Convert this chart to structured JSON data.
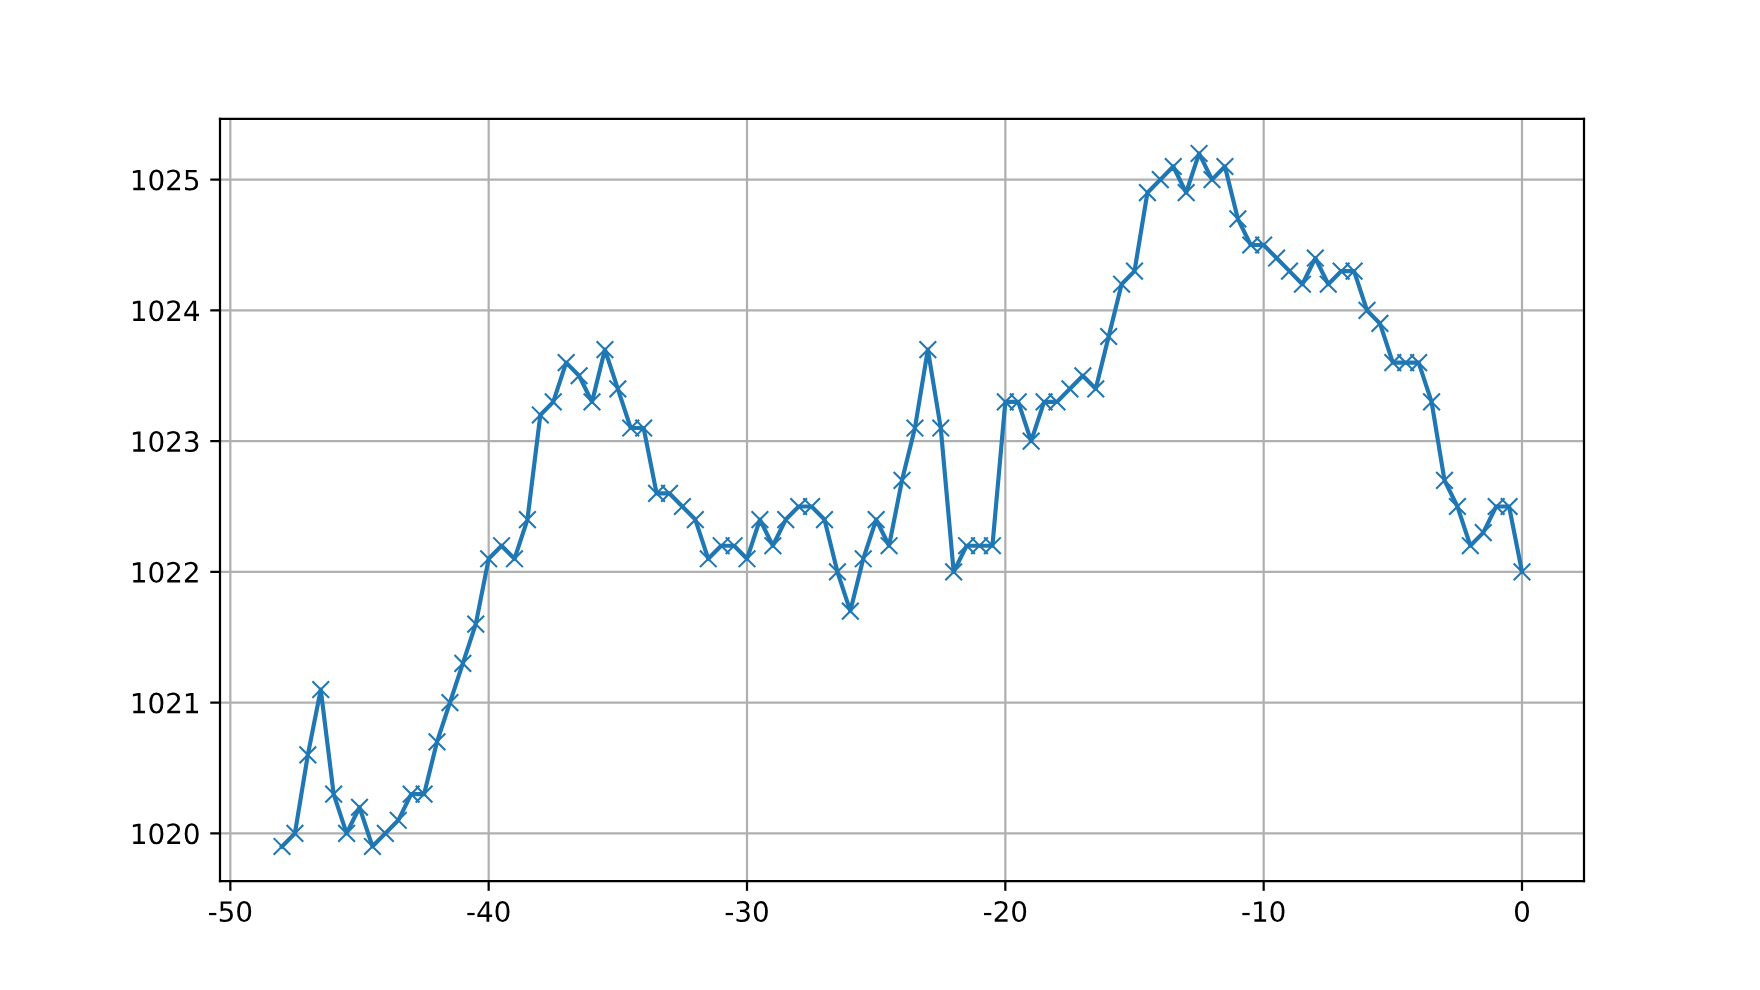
{
  "chart_data": {
    "type": "line",
    "marker": "cross",
    "grid": true,
    "color": "#1f77b4",
    "x": [
      -48,
      -47.5,
      -47,
      -46.5,
      -46,
      -45.5,
      -45,
      -44.5,
      -44,
      -43.5,
      -43,
      -42.5,
      -42,
      -41.5,
      -41,
      -40.5,
      -40,
      -39.5,
      -39,
      -38.5,
      -38,
      -37.5,
      -37,
      -36.5,
      -36,
      -35.5,
      -35,
      -34.5,
      -34,
      -33.5,
      -33,
      -32.5,
      -32,
      -31.5,
      -31,
      -30.5,
      -30,
      -29.5,
      -29,
      -28.5,
      -28,
      -27.5,
      -27,
      -26.5,
      -26,
      -25.5,
      -25,
      -24.5,
      -24,
      -23.5,
      -23,
      -22.5,
      -22,
      -21.5,
      -21,
      -20.5,
      -20,
      -19.5,
      -19,
      -18.5,
      -18,
      -17.5,
      -17,
      -16.5,
      -16,
      -15.5,
      -15,
      -14.5,
      -14,
      -13.5,
      -13,
      -12.5,
      -12,
      -11.5,
      -11,
      -10.5,
      -10,
      -9.5,
      -9,
      -8.5,
      -8,
      -7.5,
      -7,
      -6.5,
      -6,
      -5.5,
      -5,
      -4.5,
      -4,
      -3.5,
      -3,
      -2.5,
      -2,
      -1.5,
      -1,
      -0.5,
      0
    ],
    "values": [
      1019.9,
      1020.0,
      1020.6,
      1021.1,
      1020.3,
      1020.0,
      1020.2,
      1019.9,
      1020.0,
      1020.1,
      1020.3,
      1020.3,
      1020.7,
      1021.0,
      1021.3,
      1021.6,
      1022.1,
      1022.2,
      1022.1,
      1022.4,
      1023.2,
      1023.3,
      1023.6,
      1023.5,
      1023.3,
      1023.7,
      1023.4,
      1023.1,
      1023.1,
      1022.6,
      1022.6,
      1022.5,
      1022.4,
      1022.1,
      1022.2,
      1022.2,
      1022.1,
      1022.4,
      1022.2,
      1022.4,
      1022.5,
      1022.5,
      1022.4,
      1022.0,
      1021.7,
      1022.1,
      1022.4,
      1022.2,
      1022.7,
      1023.1,
      1023.7,
      1023.1,
      1022.0,
      1022.2,
      1022.2,
      1022.2,
      1023.3,
      1023.3,
      1023.0,
      1023.3,
      1023.3,
      1023.4,
      1023.5,
      1023.4,
      1023.8,
      1024.2,
      1024.3,
      1024.9,
      1025.0,
      1025.1,
      1024.9,
      1025.2,
      1025.0,
      1025.1,
      1024.7,
      1024.5,
      1024.5,
      1024.4,
      1024.3,
      1024.2,
      1024.4,
      1024.2,
      1024.3,
      1024.3,
      1024.0,
      1023.9,
      1023.6,
      1023.6,
      1023.6,
      1023.3,
      1022.7,
      1022.5,
      1022.2,
      1022.3,
      1022.5,
      1022.5,
      1022.0
    ],
    "xlim": [
      -50.4,
      2.4
    ],
    "ylim": [
      1019.635,
      1025.465
    ],
    "xticks": [
      -50,
      -40,
      -30,
      -20,
      -10,
      0
    ],
    "yticks": [
      1020,
      1021,
      1022,
      1023,
      1024,
      1025
    ]
  }
}
